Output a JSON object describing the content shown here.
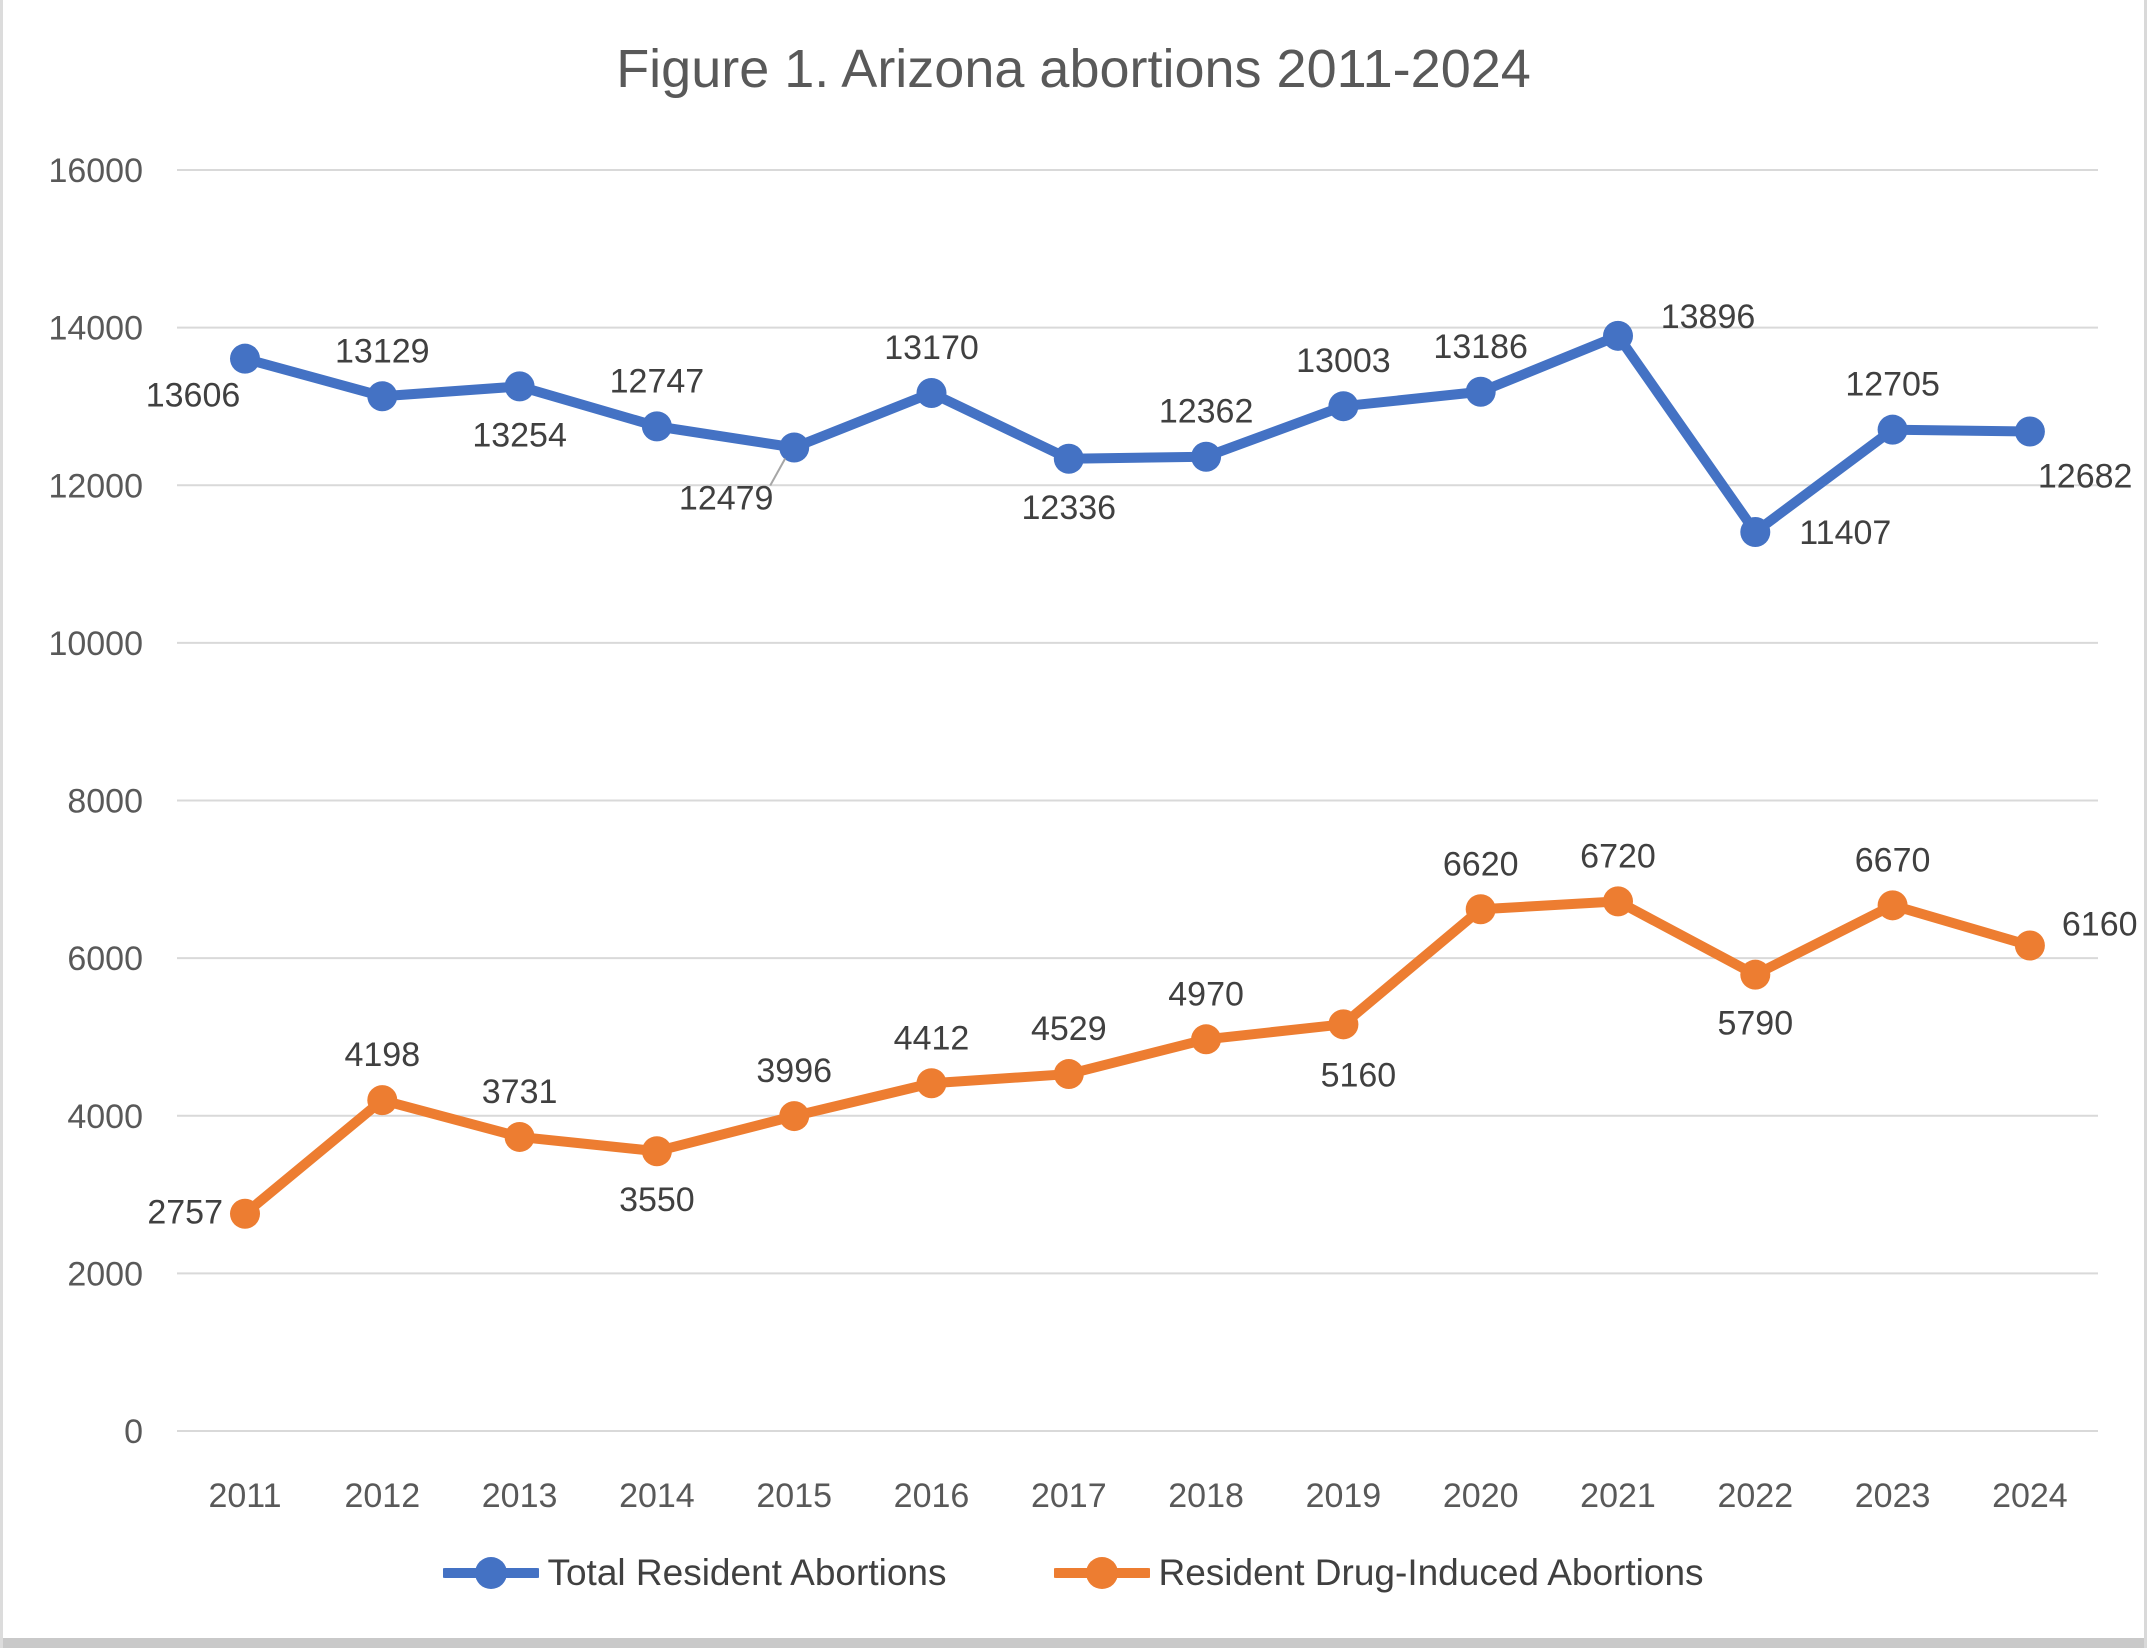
{
  "window": {
    "bottom_strip_color": "#c9c9c9",
    "edge_color": "#dcdcdc"
  },
  "chart_data": {
    "type": "line",
    "title": "Figure 1. Arizona abortions 2011-2024",
    "categories": [
      "2011",
      "2012",
      "2013",
      "2014",
      "2015",
      "2016",
      "2017",
      "2018",
      "2019",
      "2020",
      "2021",
      "2022",
      "2023",
      "2024"
    ],
    "series": [
      {
        "name": "Total Resident Abortions",
        "color": "#4472C4",
        "values": [
          13606,
          13129,
          13254,
          12747,
          12479,
          13170,
          12336,
          12362,
          13003,
          13186,
          13896,
          11407,
          12705,
          12682
        ],
        "label_placements": [
          "below-left",
          "above",
          "below",
          "above",
          "below-far",
          "above",
          "below",
          "above",
          "above",
          "above",
          "above-right",
          "right",
          "above",
          "below-right"
        ]
      },
      {
        "name": "Resident Drug-Induced Abortions",
        "color": "#ED7D31",
        "values": [
          2757,
          4198,
          3731,
          3550,
          3996,
          4412,
          4529,
          4970,
          5160,
          6620,
          6720,
          5790,
          6670,
          6160
        ],
        "label_placements": [
          "left",
          "above",
          "above",
          "below",
          "above",
          "above",
          "above",
          "above",
          "below-right-near",
          "above",
          "above",
          "below",
          "above",
          "right-above"
        ]
      }
    ],
    "ylim": [
      0,
      16000
    ],
    "ytick_step": 2000,
    "grid": true,
    "legend_position": "bottom",
    "xlabel": "",
    "ylabel": "",
    "axis_text_color": "#595959",
    "gridline_color": "#D9D9D9",
    "data_label_color": "#404040",
    "leader_line_color": "#A6A6A6"
  }
}
